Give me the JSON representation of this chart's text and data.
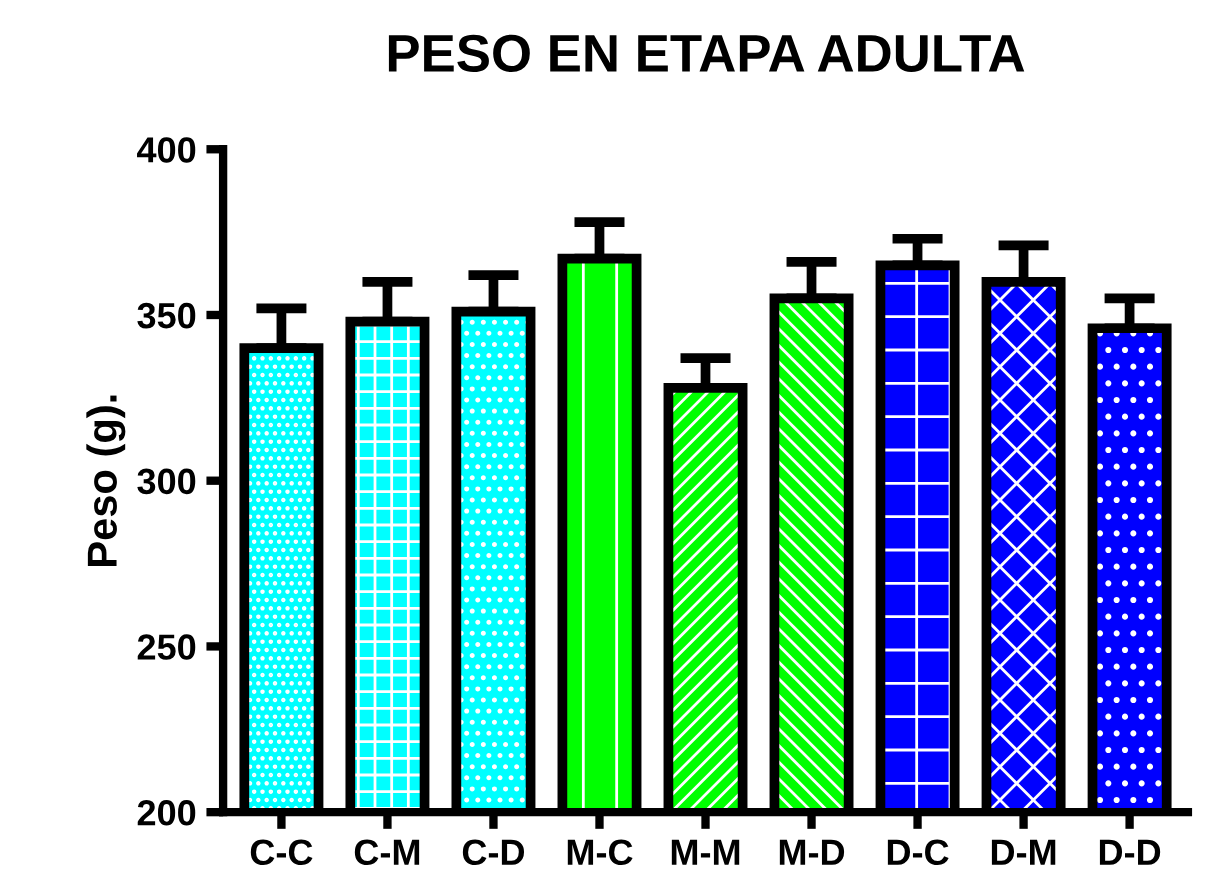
{
  "chart_data": {
    "type": "bar",
    "title": "PESO EN ETAPA ADULTA",
    "ylabel": "Peso (g).",
    "categories": [
      "C-C",
      "C-M",
      "C-D",
      "M-C",
      "M-M",
      "M-D",
      "D-C",
      "D-M",
      "D-D"
    ],
    "values": [
      340,
      348,
      351,
      367,
      328,
      355,
      365,
      360,
      346
    ],
    "errors": [
      [
        340,
        352
      ],
      [
        348,
        360
      ],
      [
        351,
        362
      ],
      [
        367,
        378
      ],
      [
        328,
        337
      ],
      [
        355,
        366
      ],
      [
        365,
        373
      ],
      [
        360,
        371
      ],
      [
        346,
        355
      ]
    ],
    "colors": [
      "#00ffff",
      "#00ffff",
      "#00ffff",
      "#00ff00",
      "#00ff00",
      "#00ff00",
      "#0000ff",
      "#0000ff",
      "#0000ff"
    ],
    "ylim": [
      200,
      400
    ],
    "yticks": [
      200,
      250,
      300,
      350,
      400
    ],
    "grid": false,
    "legend": false
  }
}
